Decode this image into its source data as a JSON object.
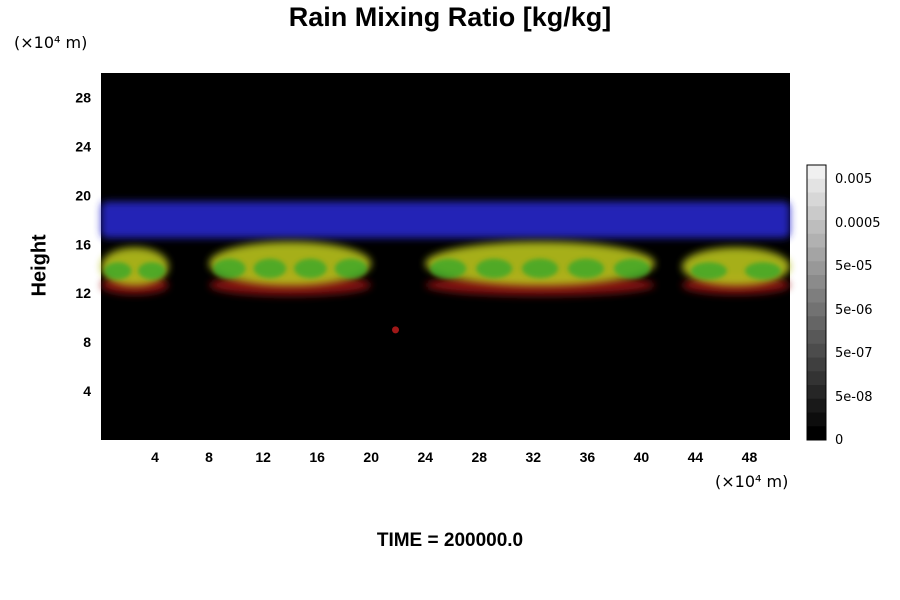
{
  "chart_data": {
    "type": "heatmap",
    "title": "Rain Mixing Ratio [kg/kg]",
    "ylabel": "Height",
    "y_unit": "(×10⁴ m)",
    "x_unit": "(×10⁴ m)",
    "x_ticks": [
      4,
      8,
      12,
      16,
      20,
      24,
      28,
      32,
      36,
      40,
      44,
      48
    ],
    "y_ticks": [
      4,
      8,
      12,
      16,
      20,
      24,
      28
    ],
    "xlim": [
      0,
      51
    ],
    "ylim": [
      0,
      30
    ],
    "colorbar_labels": [
      "0.005",
      "0.0005",
      "5e-05",
      "5e-06",
      "5e-07",
      "5e-08",
      "0"
    ],
    "colors": {
      "background": "#000000",
      "upper_band": "#2a2ad6",
      "main_layer": "#b8c21a",
      "green_cores": "#3aa82a",
      "fringe": "#a01818"
    },
    "features": [
      {
        "layer": "upper_band",
        "x_range": [
          0,
          51
        ],
        "y_range": [
          16.5,
          19.5
        ]
      },
      {
        "layer": "main_layer",
        "x_range": [
          0,
          5
        ],
        "y_range": [
          12.5,
          16
        ]
      },
      {
        "layer": "main_layer",
        "x_range": [
          8,
          20
        ],
        "y_range": [
          12.5,
          16.5
        ]
      },
      {
        "layer": "main_layer",
        "x_range": [
          24,
          41
        ],
        "y_range": [
          12.5,
          16.5
        ]
      },
      {
        "layer": "main_layer",
        "x_range": [
          43,
          51
        ],
        "y_range": [
          12.5,
          16
        ]
      },
      {
        "layer": "fringe",
        "point": [
          21.8,
          9
        ]
      }
    ]
  },
  "time_label": "TIME = 200000.0"
}
